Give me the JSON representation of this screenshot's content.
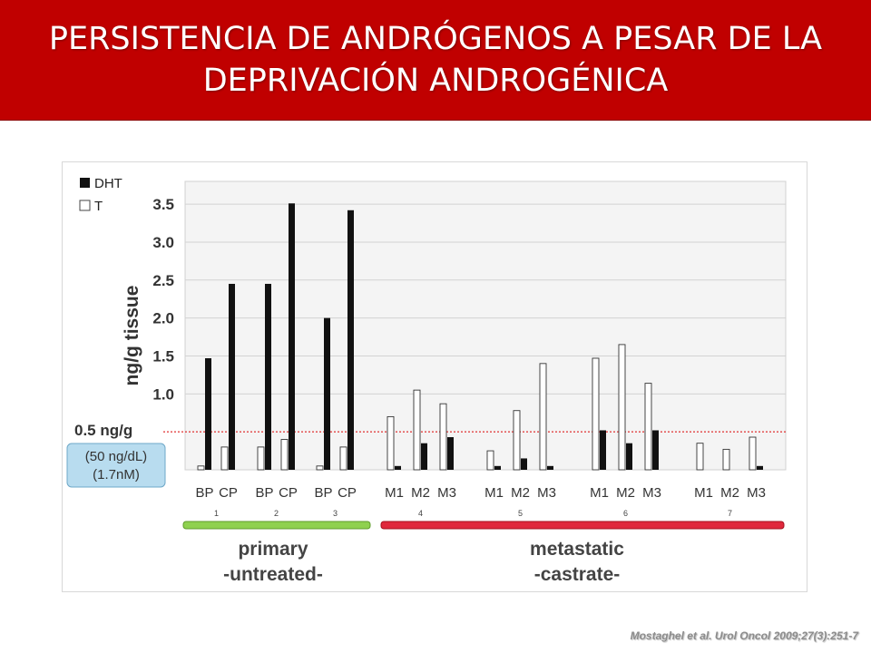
{
  "slide": {
    "title_line1": "PERSISTENCIA DE ANDRÓGENOS A PESAR DE LA",
    "title_line2": "DEPRIVACIÓN ANDROGÉNICA",
    "citation": "Mostaghel et al. Urol Oncol 2009;27(3):251-7",
    "colors": {
      "banner": "#c00000",
      "primary_bar": "#8fd14f",
      "metastatic_bar": "#e0283c",
      "threshold_line": "#e03030",
      "threshold_box": "#b8dcef"
    }
  },
  "chart_data": {
    "type": "bar",
    "ylabel": "ng/g tissue",
    "ylim": [
      0,
      3.8
    ],
    "yticks": [
      "1.0",
      "1.5",
      "2.0",
      "2.5",
      "3.0",
      "3.5"
    ],
    "grid": true,
    "legend": {
      "position": "top-left",
      "entries": [
        "DHT",
        "T"
      ]
    },
    "threshold": {
      "value": 0.5,
      "label": "0.5 ng/g",
      "note_line1": "(50 ng/dL)",
      "note_line2": "(1.7nM)"
    },
    "groups": [
      {
        "label": "primary",
        "sublabel": "-untreated-"
      },
      {
        "label": "metastatic",
        "sublabel": "-castrate-"
      }
    ],
    "patients": [
      {
        "id": "1",
        "samples": [
          {
            "label": "BP",
            "T": 0.05,
            "DHT": 1.47
          },
          {
            "label": "CP",
            "T": 0.3,
            "DHT": 2.45
          }
        ]
      },
      {
        "id": "2",
        "samples": [
          {
            "label": "BP",
            "T": 0.3,
            "DHT": 2.45
          },
          {
            "label": "CP",
            "T": 0.4,
            "DHT": 3.51
          }
        ]
      },
      {
        "id": "3",
        "samples": [
          {
            "label": "BP",
            "T": 0.05,
            "DHT": 2.0
          },
          {
            "label": "CP",
            "T": 0.3,
            "DHT": 3.42
          }
        ]
      },
      {
        "id": "4",
        "samples": [
          {
            "label": "M1",
            "T": 0.7,
            "DHT": 0.05
          },
          {
            "label": "M2",
            "T": 1.05,
            "DHT": 0.35
          },
          {
            "label": "M3",
            "T": 0.87,
            "DHT": 0.43
          }
        ]
      },
      {
        "id": "5",
        "samples": [
          {
            "label": "M1",
            "T": 0.25,
            "DHT": 0.05
          },
          {
            "label": "M2",
            "T": 0.78,
            "DHT": 0.15
          },
          {
            "label": "M3",
            "T": 1.4,
            "DHT": 0.05
          }
        ]
      },
      {
        "id": "6",
        "samples": [
          {
            "label": "M1",
            "T": 1.47,
            "DHT": 0.52
          },
          {
            "label": "M2",
            "T": 1.65,
            "DHT": 0.35
          },
          {
            "label": "M3",
            "T": 1.14,
            "DHT": 0.52
          }
        ]
      },
      {
        "id": "7",
        "samples": [
          {
            "label": "M1",
            "T": 0.35,
            "DHT": 0.0
          },
          {
            "label": "M2",
            "T": 0.27,
            "DHT": 0.0
          },
          {
            "label": "M3",
            "T": 0.43,
            "DHT": 0.05
          }
        ]
      }
    ]
  }
}
